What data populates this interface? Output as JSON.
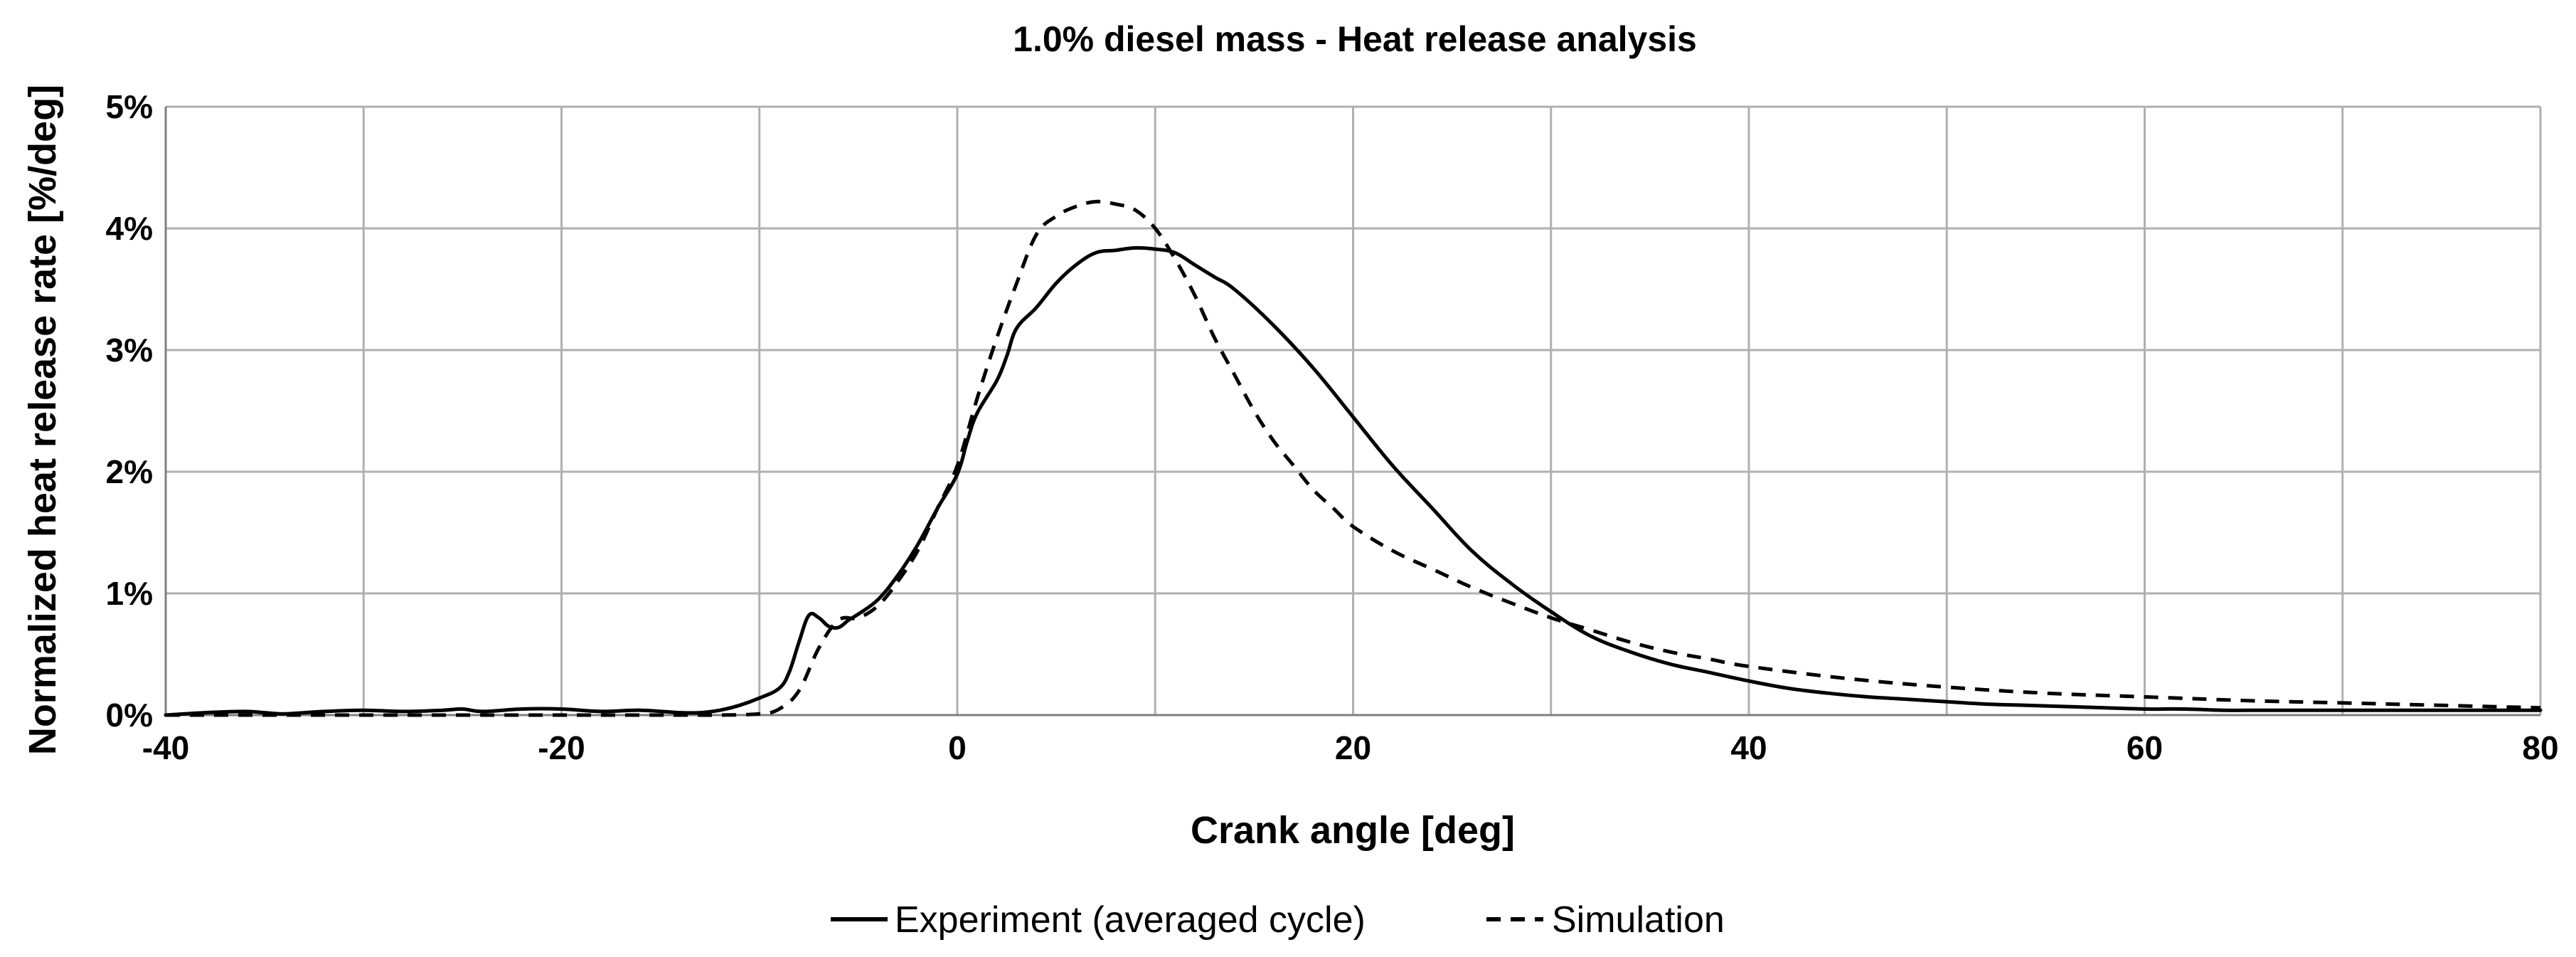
{
  "chart_data": {
    "type": "line",
    "title": "1.0% diesel mass - Heat release analysis",
    "xlabel": "Crank angle [deg]",
    "ylabel": "Normalized heat release rate  [%/deg]",
    "xlim": [
      -40,
      80
    ],
    "ylim": [
      0,
      5
    ],
    "x_ticks": [
      -40,
      -20,
      0,
      20,
      40,
      60,
      80
    ],
    "x_tick_labels": [
      "-40",
      "-20",
      "0",
      "20",
      "40",
      "60",
      "80"
    ],
    "x_minor_grid": [
      -30,
      -10,
      10,
      30,
      50,
      70
    ],
    "y_ticks": [
      0,
      1,
      2,
      3,
      4,
      5
    ],
    "y_tick_labels": [
      "0%",
      "1%",
      "2%",
      "3%",
      "4%",
      "5%"
    ],
    "grid": true,
    "legend_position": "bottom",
    "colors": {
      "line": "#000000",
      "grid": "#b0b0b0",
      "axis": "#7f7f7f"
    },
    "series": [
      {
        "name": "Experiment (averaged cycle)",
        "style": "solid",
        "x": [
          -40,
          -38,
          -36,
          -35,
          -34,
          -32,
          -30,
          -28,
          -26,
          -25,
          -24,
          -22,
          -20,
          -18,
          -16,
          -14,
          -13,
          -12,
          -11,
          -10,
          -9,
          -8.5,
          -8,
          -7.5,
          -7,
          -6.5,
          -6,
          -5.5,
          -5,
          -4,
          -3,
          -2,
          -1,
          0,
          0.5,
          1,
          2,
          2.5,
          3,
          4,
          5,
          6,
          7,
          8,
          9,
          10,
          11,
          12,
          13,
          14,
          16,
          18,
          20,
          22,
          24,
          26,
          28,
          30,
          32,
          34,
          36,
          38,
          40,
          42,
          44,
          46,
          48,
          50,
          52,
          54,
          56,
          58,
          60,
          62,
          64,
          66,
          68,
          70,
          72,
          74,
          76,
          78,
          80
        ],
        "values": [
          0.0,
          0.02,
          0.03,
          0.02,
          0.01,
          0.03,
          0.04,
          0.03,
          0.04,
          0.05,
          0.03,
          0.05,
          0.05,
          0.03,
          0.04,
          0.02,
          0.02,
          0.04,
          0.08,
          0.14,
          0.22,
          0.35,
          0.6,
          0.82,
          0.8,
          0.73,
          0.72,
          0.78,
          0.83,
          0.95,
          1.15,
          1.4,
          1.7,
          1.98,
          2.25,
          2.48,
          2.75,
          2.95,
          3.18,
          3.35,
          3.55,
          3.7,
          3.8,
          3.82,
          3.84,
          3.83,
          3.8,
          3.7,
          3.6,
          3.5,
          3.2,
          2.85,
          2.45,
          2.05,
          1.7,
          1.35,
          1.08,
          0.85,
          0.65,
          0.52,
          0.42,
          0.35,
          0.28,
          0.22,
          0.18,
          0.15,
          0.13,
          0.11,
          0.09,
          0.08,
          0.07,
          0.06,
          0.05,
          0.05,
          0.04,
          0.04,
          0.04,
          0.04,
          0.04,
          0.04,
          0.04,
          0.04,
          0.04
        ]
      },
      {
        "name": "Simulation",
        "style": "dashed",
        "x": [
          -40,
          -30,
          -20,
          -14,
          -12,
          -10,
          -9,
          -8,
          -7,
          -6,
          -5,
          -4,
          -3,
          -2,
          -1,
          0,
          1,
          2,
          3,
          4,
          5,
          6,
          7,
          8,
          9,
          10,
          11,
          12,
          13,
          14,
          15,
          16,
          17,
          18,
          19,
          20,
          22,
          24,
          26,
          28,
          30,
          32,
          34,
          36,
          38,
          40,
          45,
          50,
          55,
          60,
          65,
          70,
          75,
          80
        ],
        "values": [
          0.0,
          0.0,
          0.0,
          0.0,
          0.0,
          0.01,
          0.05,
          0.2,
          0.55,
          0.78,
          0.8,
          0.9,
          1.1,
          1.35,
          1.7,
          2.05,
          2.6,
          3.1,
          3.55,
          3.95,
          4.1,
          4.18,
          4.22,
          4.2,
          4.15,
          4.0,
          3.75,
          3.45,
          3.1,
          2.8,
          2.5,
          2.25,
          2.05,
          1.85,
          1.7,
          1.55,
          1.35,
          1.2,
          1.05,
          0.92,
          0.8,
          0.7,
          0.6,
          0.52,
          0.46,
          0.4,
          0.3,
          0.23,
          0.18,
          0.15,
          0.12,
          0.1,
          0.08,
          0.06
        ]
      }
    ]
  }
}
